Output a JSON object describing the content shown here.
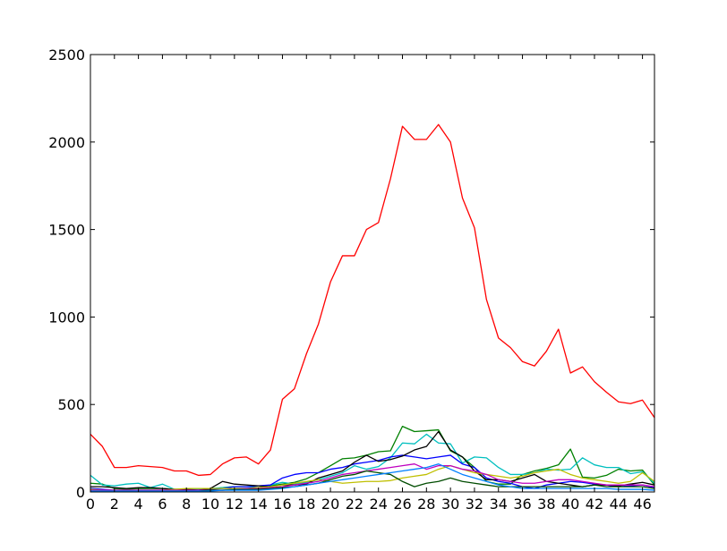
{
  "chart_data": {
    "type": "line",
    "title": "",
    "xlabel": "",
    "ylabel": "",
    "xlim": [
      0,
      47
    ],
    "ylim": [
      0,
      2500
    ],
    "x_ticks": [
      "0",
      "2",
      "4",
      "6",
      "8",
      "10",
      "12",
      "14",
      "16",
      "18",
      "20",
      "22",
      "24",
      "26",
      "28",
      "30",
      "32",
      "34",
      "36",
      "38",
      "40",
      "42",
      "44",
      "46"
    ],
    "y_ticks": [
      "0",
      "500",
      "1000",
      "1500",
      "2000",
      "2500"
    ],
    "grid": false,
    "legend": "none",
    "x": [
      0,
      1,
      2,
      3,
      4,
      5,
      6,
      7,
      8,
      9,
      10,
      11,
      12,
      13,
      14,
      15,
      16,
      17,
      18,
      19,
      20,
      21,
      22,
      23,
      24,
      25,
      26,
      27,
      28,
      29,
      30,
      31,
      32,
      33,
      34,
      35,
      36,
      37,
      38,
      39,
      40,
      41,
      42,
      43,
      44,
      45,
      46,
      47
    ],
    "series": [
      {
        "color": "#ff0000",
        "values": [
          330,
          260,
          140,
          140,
          150,
          145,
          140,
          120,
          120,
          95,
          100,
          160,
          195,
          200,
          160,
          240,
          530,
          590,
          790,
          960,
          1200,
          1350,
          1350,
          1500,
          1540,
          1790,
          2090,
          2015,
          2015,
          2100,
          2000,
          1680,
          1510,
          1100,
          880,
          825,
          745,
          720,
          805,
          930,
          680,
          715,
          630,
          570,
          515,
          505,
          525,
          425
        ]
      },
      {
        "color": "#008000",
        "values": [
          50,
          45,
          20,
          15,
          20,
          20,
          20,
          15,
          10,
          10,
          15,
          25,
          30,
          30,
          25,
          35,
          45,
          55,
          75,
          110,
          150,
          190,
          195,
          210,
          230,
          235,
          375,
          345,
          350,
          355,
          235,
          200,
          140,
          60,
          45,
          45,
          100,
          120,
          135,
          155,
          245,
          85,
          80,
          95,
          130,
          120,
          125,
          40
        ]
      },
      {
        "color": "#00bfbf",
        "values": [
          95,
          40,
          35,
          45,
          50,
          25,
          45,
          15,
          15,
          15,
          20,
          25,
          30,
          30,
          20,
          40,
          55,
          45,
          55,
          70,
          90,
          110,
          150,
          130,
          145,
          195,
          280,
          275,
          330,
          280,
          275,
          165,
          200,
          195,
          140,
          100,
          100,
          110,
          130,
          125,
          130,
          195,
          155,
          140,
          140,
          105,
          115,
          50
        ]
      },
      {
        "color": "#0000ff",
        "values": [
          20,
          15,
          10,
          10,
          10,
          10,
          10,
          10,
          10,
          10,
          15,
          20,
          30,
          30,
          35,
          40,
          80,
          100,
          110,
          110,
          130,
          140,
          160,
          170,
          180,
          200,
          210,
          200,
          190,
          200,
          210,
          160,
          140,
          80,
          60,
          50,
          30,
          20,
          40,
          50,
          60,
          55,
          45,
          40,
          30,
          35,
          40,
          25
        ]
      },
      {
        "color": "#000000",
        "values": [
          30,
          30,
          25,
          20,
          25,
          25,
          20,
          15,
          15,
          10,
          20,
          60,
          45,
          40,
          35,
          30,
          40,
          40,
          45,
          80,
          100,
          120,
          170,
          210,
          175,
          185,
          205,
          240,
          260,
          345,
          240,
          200,
          120,
          70,
          70,
          60,
          80,
          100,
          60,
          50,
          40,
          30,
          40,
          40,
          35,
          45,
          55,
          40
        ]
      },
      {
        "color": "#bfbf00",
        "values": [
          15,
          10,
          10,
          10,
          10,
          10,
          10,
          15,
          20,
          20,
          20,
          20,
          20,
          20,
          25,
          30,
          40,
          50,
          60,
          70,
          60,
          50,
          55,
          60,
          60,
          65,
          80,
          90,
          100,
          130,
          150,
          130,
          110,
          100,
          90,
          80,
          90,
          110,
          120,
          130,
          100,
          80,
          70,
          60,
          50,
          60,
          110,
          60
        ]
      },
      {
        "color": "#bf00bf",
        "values": [
          10,
          10,
          10,
          10,
          10,
          10,
          10,
          10,
          10,
          10,
          10,
          10,
          15,
          20,
          20,
          25,
          30,
          40,
          50,
          60,
          80,
          100,
          110,
          120,
          130,
          140,
          150,
          160,
          130,
          150,
          150,
          130,
          120,
          100,
          70,
          60,
          50,
          50,
          60,
          70,
          70,
          60,
          50,
          40,
          40,
          40,
          40,
          30
        ]
      },
      {
        "color": "#004c00",
        "values": [
          5,
          5,
          5,
          5,
          5,
          5,
          5,
          5,
          5,
          5,
          10,
          10,
          15,
          15,
          15,
          20,
          25,
          30,
          40,
          50,
          70,
          90,
          100,
          120,
          110,
          100,
          60,
          30,
          50,
          60,
          80,
          60,
          50,
          40,
          30,
          30,
          30,
          30,
          30,
          30,
          30,
          30,
          40,
          30,
          30,
          30,
          30,
          20
        ]
      },
      {
        "color": "#0080ff",
        "values": [
          5,
          5,
          5,
          5,
          5,
          5,
          5,
          5,
          5,
          5,
          5,
          10,
          10,
          10,
          10,
          15,
          20,
          30,
          40,
          50,
          60,
          70,
          80,
          90,
          100,
          110,
          120,
          130,
          140,
          160,
          130,
          100,
          80,
          60,
          40,
          30,
          20,
          20,
          20,
          20,
          20,
          20,
          20,
          20,
          15,
          15,
          15,
          10
        ]
      }
    ]
  }
}
